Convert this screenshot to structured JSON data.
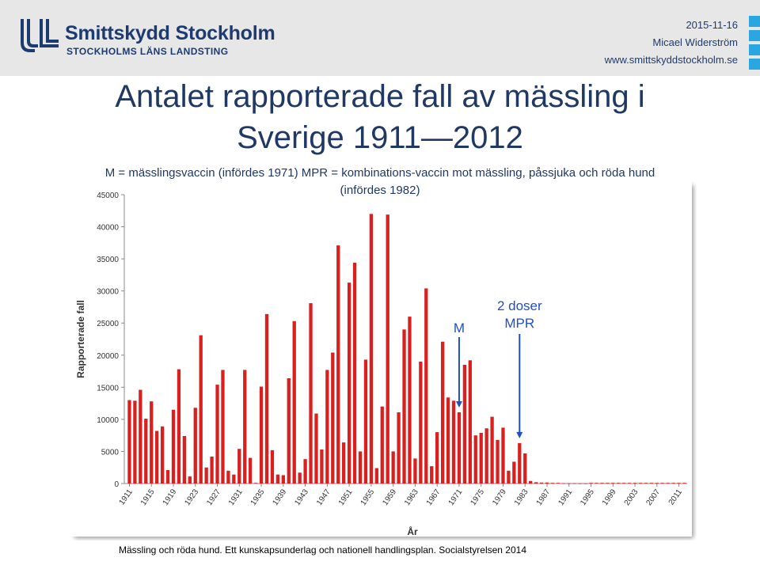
{
  "header": {
    "logo_name": "Smittskydd Stockholm",
    "logo_sub": "STOCKHOLMS LÄNS LANDSTING",
    "date": "2015-11-16",
    "author": "Micael Widerström",
    "url": "www.smittskyddstockholm.se",
    "accent_color": "#2aa6e0",
    "brand_color": "#1d3b6f"
  },
  "title_line1": "Antalet rapporterade fall av mässling i",
  "title_line2": "Sverige 1911—2012",
  "subtitle_line1": "M = mässlingsvaccin (infördes 1971) MPR = kombinations-vaccin mot mässling, påssjuka och röda hund",
  "subtitle_line2": "(infördes 1982)",
  "source": "Mässling och röda hund. Ett kunskapsunderlag och nationell handlingsplan. Socialstyrelsen 2014",
  "chart_data": {
    "type": "bar",
    "title": "",
    "xlabel": "År",
    "ylabel": "Rapporterade fall",
    "ylim": [
      0,
      45000
    ],
    "yticks": [
      0,
      5000,
      10000,
      15000,
      20000,
      25000,
      30000,
      35000,
      40000,
      45000
    ],
    "xtick_labels": [
      "1911",
      "1915",
      "1919",
      "1923",
      "1927",
      "1931",
      "1935",
      "1939",
      "1943",
      "1947",
      "1951",
      "1955",
      "1959",
      "1963",
      "1967",
      "1971",
      "1975",
      "1979",
      "1983",
      "1987",
      "1991",
      "1995",
      "1999",
      "2003",
      "2007",
      "2011"
    ],
    "grid": false,
    "bar_color": "#d9201f",
    "categories": [
      1911,
      1912,
      1913,
      1914,
      1915,
      1916,
      1917,
      1918,
      1919,
      1920,
      1921,
      1922,
      1923,
      1924,
      1925,
      1926,
      1927,
      1928,
      1929,
      1930,
      1931,
      1932,
      1933,
      1934,
      1935,
      1936,
      1937,
      1938,
      1939,
      1940,
      1941,
      1942,
      1943,
      1944,
      1945,
      1946,
      1947,
      1948,
      1949,
      1950,
      1951,
      1952,
      1953,
      1954,
      1955,
      1956,
      1957,
      1958,
      1959,
      1960,
      1961,
      1962,
      1963,
      1964,
      1965,
      1966,
      1967,
      1968,
      1969,
      1970,
      1971,
      1972,
      1973,
      1974,
      1975,
      1976,
      1977,
      1978,
      1979,
      1980,
      1981,
      1982,
      1983,
      1984,
      1985,
      1986,
      1987,
      1988,
      1989,
      1990,
      1991,
      1992,
      1993,
      1994,
      1995,
      1996,
      1997,
      1998,
      1999,
      2000,
      2001,
      2002,
      2003,
      2004,
      2005,
      2006,
      2007,
      2008,
      2009,
      2010,
      2011,
      2012
    ],
    "values": [
      13000,
      12900,
      14600,
      10100,
      12800,
      8200,
      8900,
      2100,
      11500,
      17800,
      7400,
      1100,
      11800,
      23100,
      2500,
      4200,
      15400,
      17700,
      2000,
      1400,
      5400,
      17700,
      4000,
      100,
      15100,
      26400,
      5200,
      1400,
      1300,
      16400,
      25300,
      1700,
      3800,
      28100,
      10900,
      5300,
      17700,
      20400,
      37100,
      6400,
      31300,
      34400,
      5000,
      19300,
      42000,
      2400,
      12000,
      41900,
      5000,
      11100,
      24000,
      26000,
      3900,
      19000,
      30400,
      2700,
      8000,
      22100,
      13400,
      12900,
      11100,
      18500,
      19200,
      7500,
      7900,
      8600,
      10400,
      6800,
      8700,
      2000,
      3400,
      6300,
      4700,
      400,
      200,
      150,
      150,
      100,
      100,
      50,
      50,
      50,
      30,
      30,
      100,
      100,
      100,
      100,
      100,
      100,
      100,
      100,
      100,
      100,
      100,
      100,
      100,
      100,
      100,
      100,
      100,
      100
    ],
    "annotations": [
      {
        "text": "M",
        "x": 1971,
        "color": "#1f4fc8"
      },
      {
        "text": "2 doser",
        "text2": "MPR",
        "x": 1982,
        "color": "#1f4fc8"
      }
    ]
  }
}
